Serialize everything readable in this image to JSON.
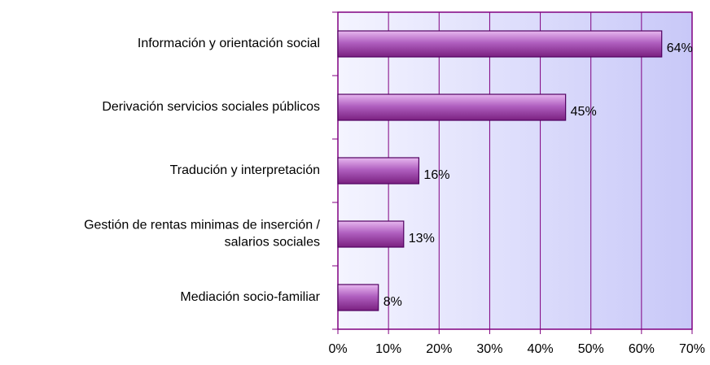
{
  "chart_data": {
    "type": "bar",
    "orientation": "horizontal",
    "categories": [
      "Información y orientación social",
      "Derivación servicios sociales públicos",
      "Tradución y interpretación",
      "Gestión de rentas minimas de inserción / salarios sociales",
      "Mediación socio-familiar"
    ],
    "values": [
      64,
      45,
      16,
      13,
      8
    ],
    "value_labels": [
      "64%",
      "45%",
      "16%",
      "13%",
      "8%"
    ],
    "color": "#a040b0",
    "xlim": [
      0,
      70
    ],
    "xticks": [
      {
        "value": 0,
        "label": "0%"
      },
      {
        "value": 10,
        "label": "10%"
      },
      {
        "value": 20,
        "label": "20%"
      },
      {
        "value": 30,
        "label": "30%"
      },
      {
        "value": 40,
        "label": "40%"
      },
      {
        "value": 50,
        "label": "50%"
      },
      {
        "value": 60,
        "label": "60%"
      },
      {
        "value": 70,
        "label": "70%"
      }
    ],
    "grid": true
  }
}
